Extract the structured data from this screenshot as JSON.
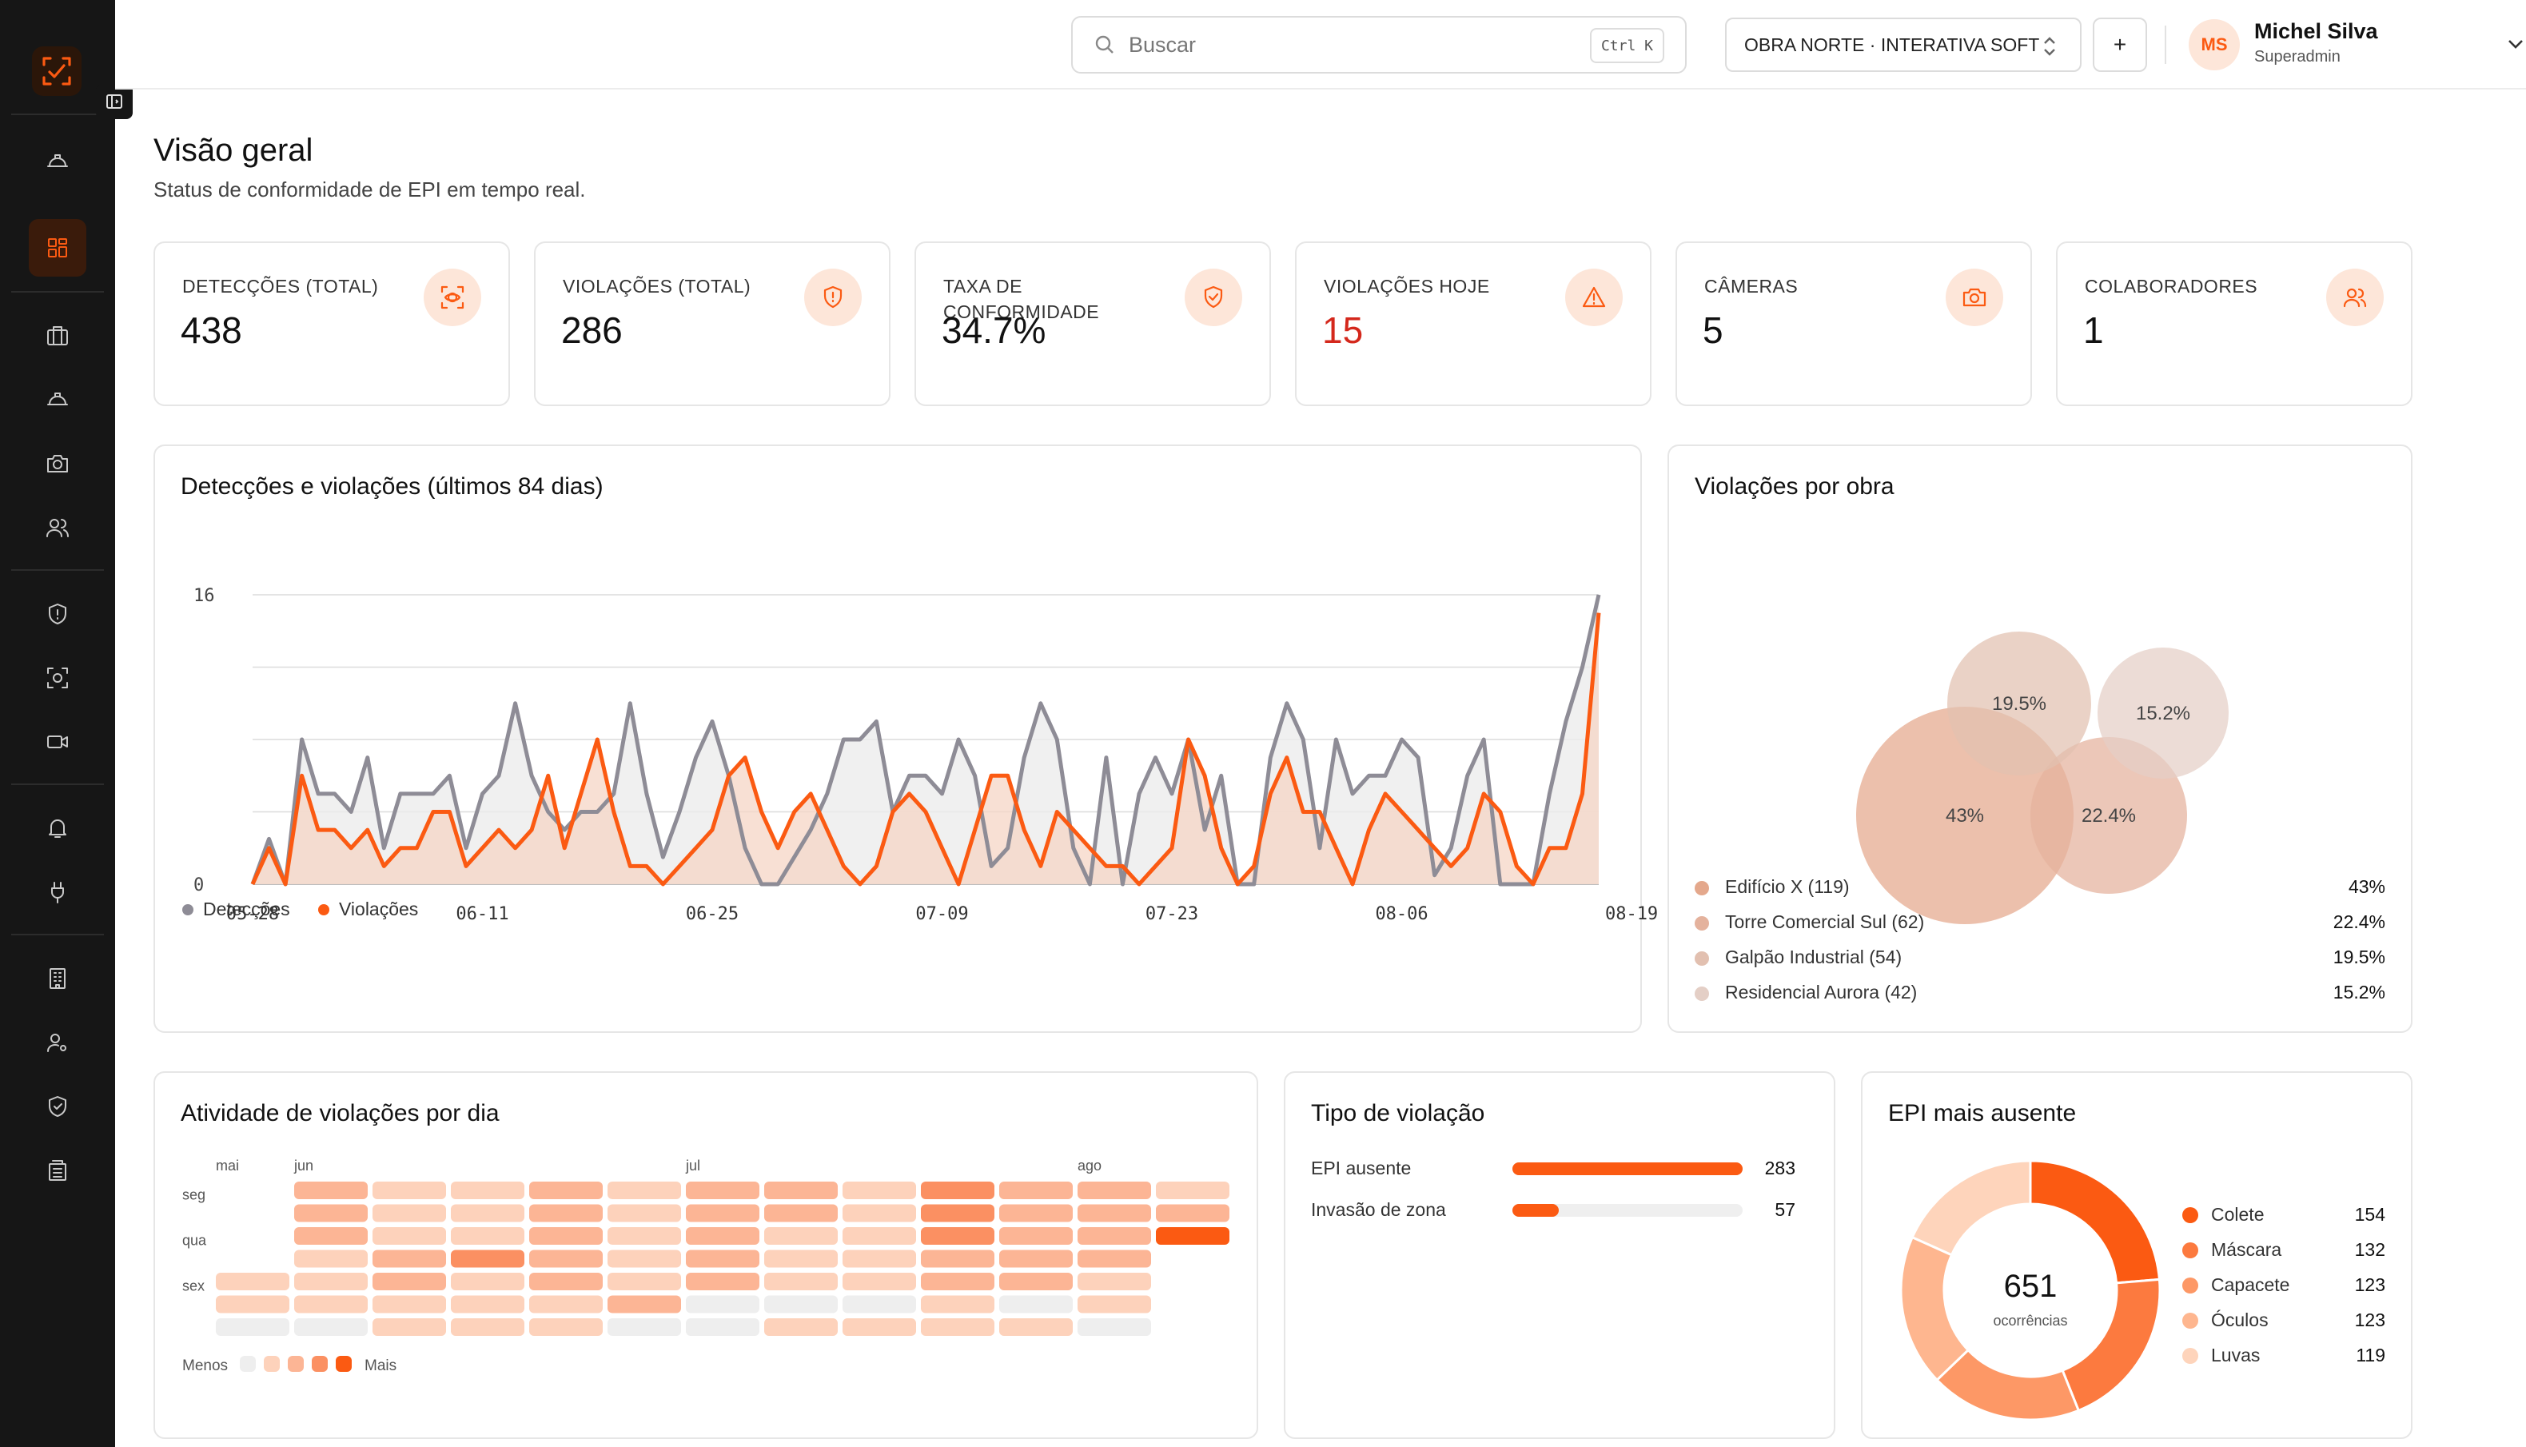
{
  "sidebar": {
    "items": [
      "hardhat",
      "dashboard",
      "briefcase",
      "hardhat2",
      "camera",
      "users",
      "shield",
      "scan",
      "video",
      "bell",
      "plug",
      "building",
      "user-gear",
      "shield-check",
      "archive"
    ]
  },
  "topbar": {
    "search_placeholder": "Buscar",
    "search_shortcut": "Ctrl K",
    "obra_label": "OBRA NORTE · INTERATIVA SOFT",
    "add_label": "+",
    "user_initials": "MS",
    "user_name": "Michel Silva",
    "user_role": "Superadmin"
  },
  "page": {
    "title": "Visão geral",
    "subtitle": "Status de conformidade de EPI em tempo real."
  },
  "kpis": [
    {
      "label": "DETECÇÕES (TOTAL)",
      "value": "438",
      "icon": "scan-icon"
    },
    {
      "label": "VIOLAÇÕES (TOTAL)",
      "value": "286",
      "icon": "shield-alert-icon"
    },
    {
      "label": "TAXA DE CONFORMIDADE",
      "value": "34.7%",
      "icon": "shield-check-icon"
    },
    {
      "label": "VIOLAÇÕES HOJE",
      "value": "15",
      "icon": "warning-icon",
      "color": "#d4281c"
    },
    {
      "label": "CÂMERAS",
      "value": "5",
      "icon": "camera-icon"
    },
    {
      "label": "COLABORADORES",
      "value": "1",
      "icon": "users-icon"
    }
  ],
  "chart_data": [
    {
      "type": "area",
      "title": "Detecções e violações (últimos 84 dias)",
      "ylim": [
        0,
        16
      ],
      "yticks": [
        "0",
        "16"
      ],
      "xticks": [
        "05-28",
        "06-11",
        "06-25",
        "07-09",
        "07-23",
        "08-06",
        "08-19"
      ],
      "series": [
        {
          "name": "Detecções",
          "color": "#8e8c96",
          "values": [
            0,
            2.5,
            0,
            8,
            5,
            5,
            4,
            7,
            2,
            5,
            5,
            5,
            6,
            2,
            5,
            6,
            10,
            6,
            4,
            3,
            4,
            4,
            5,
            10,
            5,
            1.5,
            4,
            7,
            9,
            6,
            2,
            0,
            0,
            1.5,
            3,
            5,
            8,
            8,
            9,
            4,
            6,
            6,
            5,
            8,
            6,
            1,
            2,
            7,
            10,
            8,
            2,
            0,
            7,
            0,
            5,
            7,
            5,
            8,
            3,
            6,
            0,
            0,
            7,
            10,
            8,
            2,
            8,
            5,
            6,
            6,
            8,
            7,
            0.5,
            2,
            6,
            8,
            0,
            0,
            0,
            5,
            9,
            12,
            16
          ]
        },
        {
          "name": "Violações",
          "color": "#fb5a12",
          "values": [
            0,
            2,
            0,
            6,
            3,
            3,
            2,
            3,
            1,
            2,
            2,
            4,
            4,
            1,
            2,
            3,
            2,
            3,
            6,
            2,
            5,
            8,
            4,
            1,
            1,
            0,
            1,
            2,
            3,
            6,
            7,
            4,
            2,
            4,
            5,
            3,
            1,
            0,
            1,
            4,
            5,
            4,
            2,
            0,
            3,
            6,
            6,
            3,
            1,
            4,
            3,
            2,
            1,
            1,
            0,
            1,
            2,
            8,
            6,
            2,
            0,
            1,
            5,
            7,
            4,
            4,
            2,
            0,
            3,
            5,
            4,
            3,
            2,
            1,
            2,
            5,
            4,
            1,
            0,
            2,
            2,
            5,
            15
          ]
        }
      ]
    },
    {
      "type": "heatmap",
      "title": "Atividade de violações por dia",
      "months": [
        "mai",
        "jun",
        "jul",
        "ago"
      ],
      "days": [
        "seg",
        "qua",
        "sex"
      ],
      "legend_low": "Menos",
      "legend_high": "Mais",
      "weeks": [
        [
          0,
          0,
          0,
          0,
          1,
          1,
          0
        ],
        [
          2,
          2,
          2,
          1,
          1,
          1,
          0
        ],
        [
          1,
          1,
          1,
          2,
          2,
          1,
          1
        ],
        [
          1,
          1,
          1,
          3,
          1,
          1,
          1
        ],
        [
          2,
          2,
          2,
          2,
          2,
          1,
          1
        ],
        [
          1,
          1,
          1,
          1,
          1,
          2,
          0
        ],
        [
          2,
          2,
          2,
          2,
          2,
          0,
          0
        ],
        [
          2,
          2,
          1,
          1,
          1,
          0,
          1
        ],
        [
          1,
          1,
          1,
          1,
          1,
          0,
          1
        ],
        [
          3,
          3,
          3,
          2,
          2,
          1,
          1
        ],
        [
          2,
          2,
          2,
          2,
          2,
          0,
          1
        ],
        [
          2,
          2,
          2,
          2,
          1,
          1,
          0
        ],
        [
          1,
          2,
          4,
          0,
          0,
          0,
          0
        ]
      ]
    },
    {
      "type": "bar",
      "title": "Tipo de violação",
      "categories": [
        "EPI ausente",
        "Invasão de zona"
      ],
      "values": [
        283,
        57
      ],
      "max": 283
    },
    {
      "type": "pie",
      "title": "EPI mais ausente",
      "total": "651",
      "total_label": "ocorrências",
      "categories": [
        "Colete",
        "Máscara",
        "Capacete",
        "Óculos",
        "Luvas"
      ],
      "values": [
        154,
        132,
        123,
        123,
        119
      ],
      "colors": [
        "#fb5a12",
        "#fc7a3f",
        "#fd9866",
        "#feb68f",
        "#fed4bb"
      ]
    }
  ],
  "violacoes_por_obra": {
    "title": "Violações por obra",
    "items": [
      {
        "name": "Edifício X (119)",
        "pct": "43%",
        "value": 43,
        "color": "#e4a88c"
      },
      {
        "name": "Torre Comercial Sul (62)",
        "pct": "22.4%",
        "value": 22.4,
        "color": "#e4b29d"
      },
      {
        "name": "Galpão Industrial (54)",
        "pct": "19.5%",
        "value": 19.5,
        "color": "#e2c0b0"
      },
      {
        "name": "Residencial Aurora (42)",
        "pct": "15.2%",
        "value": 15.2,
        "color": "#e4cfc6"
      }
    ]
  }
}
